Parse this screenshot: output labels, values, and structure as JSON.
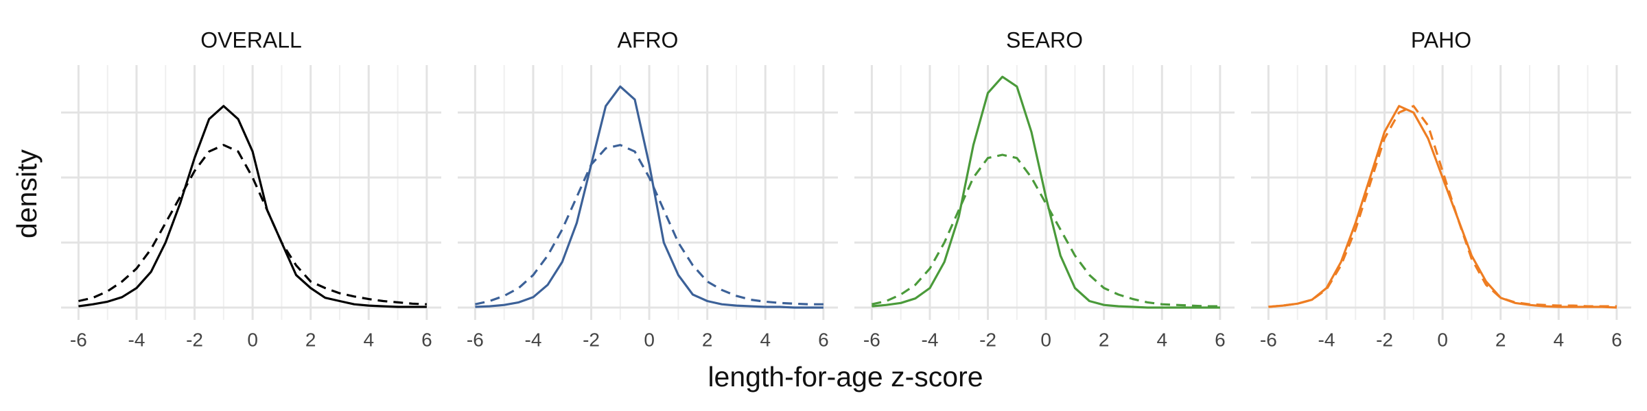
{
  "xlabel": "length-for-age z-score",
  "ylabel": "density",
  "chart_data": [
    {
      "type": "line",
      "title": "OVERALL",
      "x": [
        -6,
        -5.5,
        -5,
        -4.5,
        -4,
        -3.5,
        -3,
        -2.5,
        -2,
        -1.5,
        -1,
        -0.5,
        0,
        0.5,
        1,
        1.5,
        2,
        2.5,
        3,
        3.5,
        4,
        4.5,
        5,
        5.5,
        6
      ],
      "series": [
        {
          "color": "#000000",
          "linestyle": "solid",
          "values": [
            0.002,
            0.005,
            0.009,
            0.016,
            0.03,
            0.055,
            0.1,
            0.16,
            0.23,
            0.29,
            0.31,
            0.29,
            0.24,
            0.15,
            0.1,
            0.05,
            0.03,
            0.015,
            0.01,
            0.005,
            0.003,
            0.002,
            0.001,
            0.001,
            0.001
          ]
        },
        {
          "color": "#000000",
          "linestyle": "dashed",
          "values": [
            0.01,
            0.015,
            0.025,
            0.04,
            0.06,
            0.09,
            0.13,
            0.17,
            0.21,
            0.24,
            0.25,
            0.24,
            0.2,
            0.15,
            0.1,
            0.065,
            0.04,
            0.03,
            0.022,
            0.017,
            0.013,
            0.01,
            0.008,
            0.006,
            0.005
          ]
        }
      ],
      "xlim": [
        -6.6,
        6.5
      ],
      "xticks": [
        -6,
        -4,
        -2,
        0,
        2,
        4,
        6
      ],
      "ylim": [
        -0.019,
        0.373
      ],
      "yticks": [
        0,
        0.1,
        0.2,
        0.3
      ],
      "grid": true
    },
    {
      "type": "line",
      "title": "AFRO",
      "x": [
        -6,
        -5.5,
        -5,
        -4.5,
        -4,
        -3.5,
        -3,
        -2.5,
        -2,
        -1.5,
        -1,
        -0.5,
        0,
        0.5,
        1,
        1.5,
        2,
        2.5,
        3,
        3.5,
        4,
        4.5,
        5,
        5.5,
        6
      ],
      "series": [
        {
          "color": "#3c6198",
          "linestyle": "solid",
          "values": [
            0.001,
            0.002,
            0.004,
            0.008,
            0.016,
            0.035,
            0.07,
            0.13,
            0.22,
            0.31,
            0.34,
            0.32,
            0.22,
            0.1,
            0.05,
            0.02,
            0.01,
            0.005,
            0.003,
            0.002,
            0.001,
            0.001,
            0,
            0,
            0
          ]
        },
        {
          "color": "#3c6198",
          "linestyle": "dashed",
          "values": [
            0.005,
            0.01,
            0.018,
            0.03,
            0.05,
            0.08,
            0.12,
            0.17,
            0.22,
            0.245,
            0.25,
            0.24,
            0.2,
            0.15,
            0.1,
            0.065,
            0.04,
            0.027,
            0.018,
            0.012,
            0.009,
            0.007,
            0.006,
            0.005,
            0.005
          ]
        }
      ],
      "xlim": [
        -6.6,
        6.5
      ],
      "xticks": [
        -6,
        -4,
        -2,
        0,
        2,
        4,
        6
      ],
      "ylim": [
        -0.019,
        0.373
      ],
      "yticks": [
        0,
        0.1,
        0.2,
        0.3
      ],
      "grid": true
    },
    {
      "type": "line",
      "title": "SEARO",
      "x": [
        -6,
        -5.5,
        -5,
        -4.5,
        -4,
        -3.5,
        -3,
        -2.5,
        -2,
        -1.5,
        -1,
        -0.5,
        0,
        0.5,
        1,
        1.5,
        2,
        2.5,
        3,
        3.5,
        4,
        4.5,
        5,
        5.5,
        6
      ],
      "series": [
        {
          "color": "#4a9a3a",
          "linestyle": "solid",
          "values": [
            0.002,
            0.004,
            0.007,
            0.014,
            0.03,
            0.07,
            0.14,
            0.25,
            0.33,
            0.355,
            0.34,
            0.27,
            0.17,
            0.08,
            0.03,
            0.01,
            0.004,
            0.002,
            0.001,
            0,
            0,
            0,
            0,
            0,
            0
          ]
        },
        {
          "color": "#4a9a3a",
          "linestyle": "dashed",
          "values": [
            0.005,
            0.01,
            0.02,
            0.035,
            0.06,
            0.1,
            0.15,
            0.2,
            0.23,
            0.235,
            0.23,
            0.2,
            0.16,
            0.12,
            0.08,
            0.05,
            0.03,
            0.02,
            0.013,
            0.008,
            0.005,
            0.004,
            0.003,
            0.002,
            0.002
          ]
        }
      ],
      "xlim": [
        -6.6,
        6.5
      ],
      "xticks": [
        -6,
        -4,
        -2,
        0,
        2,
        4,
        6
      ],
      "ylim": [
        -0.019,
        0.373
      ],
      "yticks": [
        0,
        0.1,
        0.2,
        0.3
      ],
      "grid": true
    },
    {
      "type": "line",
      "title": "PAHO",
      "x": [
        -6,
        -5.5,
        -5,
        -4.5,
        -4,
        -3.5,
        -3,
        -2.5,
        -2,
        -1.5,
        -1,
        -0.5,
        0,
        0.5,
        1,
        1.5,
        2,
        2.5,
        3,
        3.5,
        4,
        4.5,
        5,
        5.5,
        6
      ],
      "series": [
        {
          "color": "#ee7d22",
          "linestyle": "solid",
          "values": [
            0.001,
            0.003,
            0.006,
            0.012,
            0.03,
            0.07,
            0.13,
            0.2,
            0.27,
            0.31,
            0.3,
            0.26,
            0.2,
            0.14,
            0.08,
            0.04,
            0.015,
            0.007,
            0.004,
            0.002,
            0.001,
            0.001,
            0.001,
            0.001,
            0
          ]
        },
        {
          "color": "#ee7d22",
          "linestyle": "dashed",
          "values": [
            0.001,
            0.003,
            0.006,
            0.012,
            0.028,
            0.065,
            0.12,
            0.19,
            0.26,
            0.3,
            0.31,
            0.28,
            0.21,
            0.14,
            0.075,
            0.035,
            0.015,
            0.008,
            0.005,
            0.004,
            0.003,
            0.003,
            0.002,
            0.002,
            0.002
          ]
        }
      ],
      "xlim": [
        -6.6,
        6.5
      ],
      "xticks": [
        -6,
        -4,
        -2,
        0,
        2,
        4,
        6
      ],
      "ylim": [
        -0.019,
        0.373
      ],
      "yticks": [
        0,
        0.1,
        0.2,
        0.3
      ],
      "grid": true
    }
  ]
}
